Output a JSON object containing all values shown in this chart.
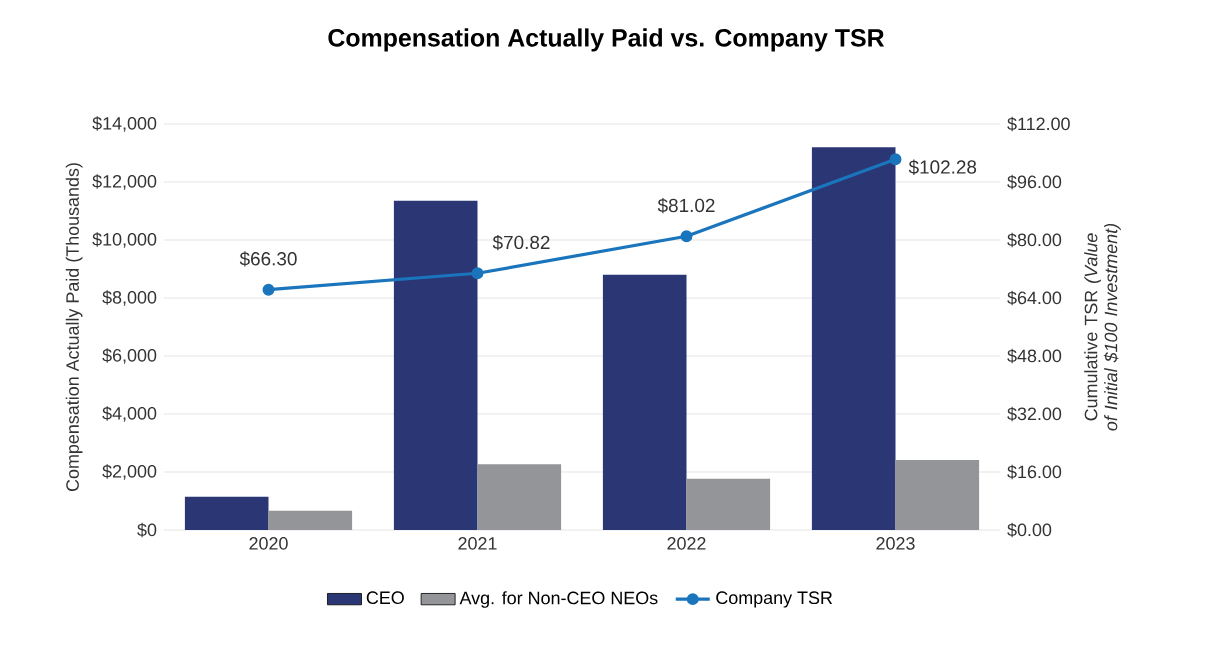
{
  "chart_data": {
    "type": "bar",
    "title": "Compensation Actually Paid vs. Company TSR",
    "categories": [
      "2020",
      "2021",
      "2022",
      "2023"
    ],
    "ylabel": "Compensation Actually Paid (Thousands)",
    "y2label": "Cumulative TSR *(Value of Initial $100 Investment)*",
    "ylim": [
      0,
      14000
    ],
    "yticks": [
      {
        "value": 0,
        "label": "$0"
      },
      {
        "value": 2000,
        "label": "$2,000"
      },
      {
        "value": 4000,
        "label": "$4,000"
      },
      {
        "value": 6000,
        "label": "$6,000"
      },
      {
        "value": 8000,
        "label": "$8,000"
      },
      {
        "value": 10000,
        "label": "$10,000"
      },
      {
        "value": 12000,
        "label": "$12,000"
      },
      {
        "value": 14000,
        "label": "$14,000"
      }
    ],
    "y2lim": [
      0,
      112
    ],
    "y2ticks": [
      {
        "value": 0,
        "label": "$0.00"
      },
      {
        "value": 16,
        "label": "$16.00"
      },
      {
        "value": 32,
        "label": "$32.00"
      },
      {
        "value": 48,
        "label": "$48.00"
      },
      {
        "value": 64,
        "label": "$64.00"
      },
      {
        "value": 80,
        "label": "$80.00"
      },
      {
        "value": 96,
        "label": "$96.00"
      },
      {
        "value": 112,
        "label": "$112.00"
      }
    ],
    "grid": "y",
    "legend": "bottom",
    "series": [
      {
        "name": "CEO",
        "color": "#2b3674",
        "values": [
          1150,
          11350,
          8800,
          13200
        ]
      },
      {
        "name": "Avg. for Non-CEO NEOs",
        "color": "#939598",
        "values": [
          660,
          2270,
          1770,
          2410
        ]
      },
      {
        "name": "Company TSR",
        "type": "line",
        "axis": "y2",
        "color": "#1a75bc",
        "marker": "circle",
        "values": [
          66.3,
          70.82,
          81.02,
          102.28
        ],
        "value_labels": [
          "$66.30",
          "$70.82",
          "$81.02",
          "$102.28"
        ]
      }
    ]
  }
}
